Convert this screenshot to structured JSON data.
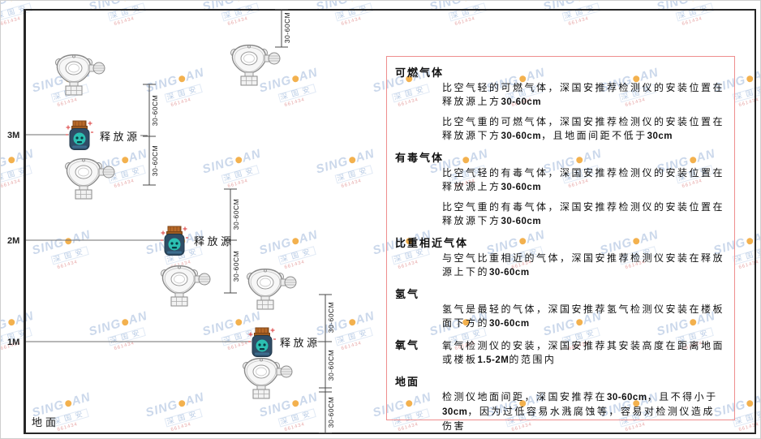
{
  "watermark": {
    "brand": "SING",
    "brand2": "AN",
    "cn": "深国安",
    "code": "661434"
  },
  "diagram": {
    "levels": [
      "3M",
      "2M",
      "1M"
    ],
    "ground_label": "地面",
    "source_label": "释放源",
    "dim_label": "30-60CM"
  },
  "panel": {
    "sections": [
      {
        "header": "可燃气体",
        "paras": [
          "比空气轻的可燃气体，深国安推荐检测仪的安装位置在释放源上方30-60cm",
          "比空气重的可燃气体，深国安推荐检测仪的安装位置在释放源下方30-60cm，且地面间距不低于30cm"
        ]
      },
      {
        "header": "有毒气体",
        "paras": [
          "比空气轻的有毒气体，深国安推荐检测仪的安装位置在释放源上方30-60cm",
          "比空气重的有毒气体，深国安推荐检测仪的安装位置在释放源下方30-60cm"
        ]
      },
      {
        "header": "比重相近气体",
        "paras": [
          "与空气比重相近的气体，深国安推荐检测仪安装在释放源上下的30-60cm"
        ]
      },
      {
        "header": "氢气",
        "paras": [
          "氢气是最轻的气体，深国安推荐氢气检测仪安装在楼板面下方的30-60cm"
        ]
      },
      {
        "header": "氧气",
        "paras": [
          "氧气检测仪的安装，深国安推荐其安装高度在距离地面或楼板1.5-2M的范围内"
        ]
      },
      {
        "header": "地面",
        "paras": [
          "检测仪地面间距，深国安推荐在30-60cm，且不得小于30cm，因为过低容易水溅腐蚀等，容易对检测仪造成伤害"
        ]
      }
    ]
  }
}
